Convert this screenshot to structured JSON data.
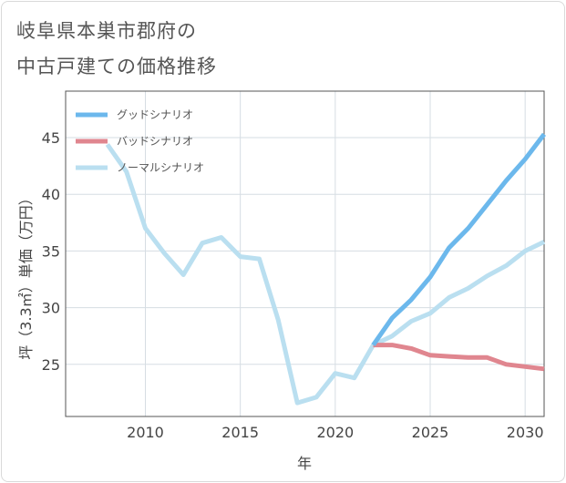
{
  "title": {
    "line1": "岐阜県本巣市郡府の",
    "line2": "中古戸建ての価格推移"
  },
  "chart_data": {
    "type": "line",
    "xlabel": "年",
    "ylabel": "坪（3.3㎡）単価（万円）",
    "xlim": [
      2005.8,
      2031.0
    ],
    "ylim": [
      20.4,
      49.1
    ],
    "xticks": [
      2010,
      2015,
      2020,
      2025,
      2030
    ],
    "yticks": [
      25,
      30,
      35,
      40,
      45
    ],
    "grid": true,
    "legend_position": "top-left",
    "series": [
      {
        "name": "グッドシナリオ",
        "color": "#6cb8ec",
        "x": [
          2022,
          2023,
          2024,
          2025,
          2026,
          2027,
          2028,
          2029,
          2030,
          2031
        ],
        "y": [
          26.7,
          29.1,
          30.7,
          32.7,
          35.3,
          37.0,
          39.1,
          41.2,
          43.1,
          45.3
        ]
      },
      {
        "name": "バッドシナリオ",
        "color": "#e0868f",
        "x": [
          2022,
          2023,
          2024,
          2025,
          2026,
          2027,
          2028,
          2029,
          2030,
          2031
        ],
        "y": [
          26.7,
          26.7,
          26.4,
          25.8,
          25.7,
          25.6,
          25.6,
          25.0,
          24.8,
          24.6
        ]
      },
      {
        "name": "ノーマルシナリオ",
        "color": "#badff0",
        "x": [
          2008,
          2009,
          2010,
          2011,
          2012,
          2013,
          2014,
          2015,
          2016,
          2017,
          2018,
          2019,
          2020,
          2021,
          2022,
          2023,
          2024,
          2025,
          2026,
          2027,
          2028,
          2029,
          2030,
          2031
        ],
        "y": [
          44.4,
          42.0,
          37.0,
          34.8,
          32.9,
          35.7,
          36.2,
          34.5,
          34.3,
          28.9,
          21.6,
          22.1,
          24.2,
          23.8,
          26.7,
          27.5,
          28.8,
          29.5,
          30.9,
          31.7,
          32.8,
          33.7,
          35.0,
          35.8
        ]
      }
    ]
  }
}
